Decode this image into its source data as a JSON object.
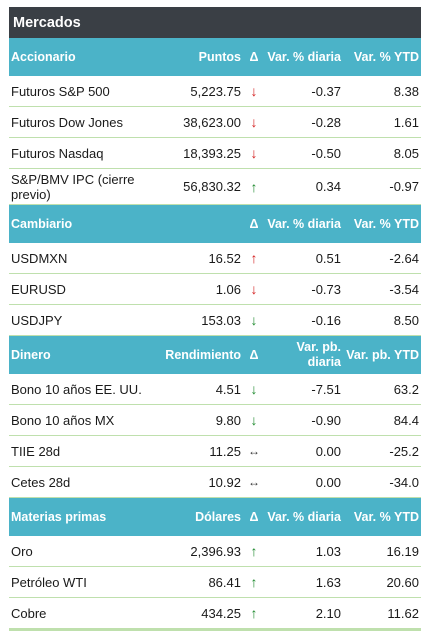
{
  "title": "Mercados",
  "colors": {
    "header_bg": "#3a3f45",
    "section_bg": "#4bb3c8",
    "row_border": "#bfe0ad",
    "arrow_red": "#d42020",
    "arrow_green": "#1e8a2e"
  },
  "sections": [
    {
      "headers": [
        "Accionario",
        "Puntos",
        "Δ",
        "Var. % diaria",
        "Var. % YTD"
      ],
      "rows": [
        {
          "name": "Futuros S&P 500",
          "value": "5,223.75",
          "arrow": "↓",
          "daily": "-0.37",
          "ytd": "8.38",
          "arrow_color": "red"
        },
        {
          "name": "Futuros Dow Jones",
          "value": "38,623.00",
          "arrow": "↓",
          "daily": "-0.28",
          "ytd": "1.61",
          "arrow_color": "red"
        },
        {
          "name": "Futuros Nasdaq",
          "value": "18,393.25",
          "arrow": "↓",
          "daily": "-0.50",
          "ytd": "8.05",
          "arrow_color": "red"
        },
        {
          "name": "S&P/BMV IPC (cierre previo)",
          "value": "56,830.32",
          "arrow": "↑",
          "daily": "0.34",
          "ytd": "-0.97",
          "arrow_color": "green"
        }
      ]
    },
    {
      "headers": [
        "Cambiario",
        "",
        "Δ",
        "Var. % diaria",
        "Var. % YTD"
      ],
      "rows": [
        {
          "name": "USDMXN",
          "value": "16.52",
          "arrow": "↑",
          "daily": "0.51",
          "ytd": "-2.64",
          "arrow_color": "red"
        },
        {
          "name": "EURUSD",
          "value": "1.06",
          "arrow": "↓",
          "daily": "-0.73",
          "ytd": "-3.54",
          "arrow_color": "red"
        },
        {
          "name": "USDJPY",
          "value": "153.03",
          "arrow": "↓",
          "daily": "-0.16",
          "ytd": "8.50",
          "arrow_color": "green"
        }
      ]
    },
    {
      "headers": [
        "Dinero",
        "Rendimiento",
        "Δ",
        "Var. pb. diaria",
        "Var. pb. YTD"
      ],
      "rows": [
        {
          "name": "Bono 10 años EE. UU.",
          "value": "4.51",
          "arrow": "↓",
          "daily": "-7.51",
          "ytd": "63.2",
          "arrow_color": "green"
        },
        {
          "name": "Bono 10 años MX",
          "value": "9.80",
          "arrow": "↓",
          "daily": "-0.90",
          "ytd": "84.4",
          "arrow_color": "green"
        },
        {
          "name": "TIIE 28d",
          "value": "11.25",
          "arrow": "↔",
          "daily": "0.00",
          "ytd": "-25.2",
          "arrow_color": "flat"
        },
        {
          "name": "Cetes 28d",
          "value": "10.92",
          "arrow": "↔",
          "daily": "0.00",
          "ytd": "-34.0",
          "arrow_color": "flat"
        }
      ]
    },
    {
      "headers": [
        "Materias primas",
        "Dólares",
        "Δ",
        "Var. % diaria",
        "Var. % YTD"
      ],
      "rows": [
        {
          "name": "Oro",
          "value": "2,396.93",
          "arrow": "↑",
          "daily": "1.03",
          "ytd": "16.19",
          "arrow_color": "green"
        },
        {
          "name": "Petróleo WTI",
          "value": "86.41",
          "arrow": "↑",
          "daily": "1.63",
          "ytd": "20.60",
          "arrow_color": "green"
        },
        {
          "name": "Cobre",
          "value": "434.25",
          "arrow": "↑",
          "daily": "2.10",
          "ytd": "11.62",
          "arrow_color": "green"
        }
      ]
    }
  ]
}
